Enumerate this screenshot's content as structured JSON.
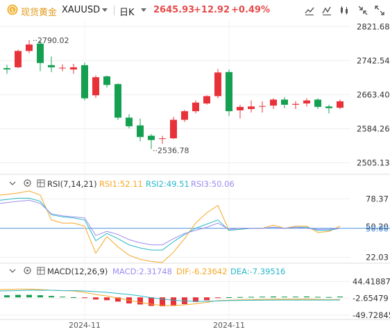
{
  "header": {
    "title": "现货黄金",
    "symbol": "XAUUSD",
    "period": "日K",
    "price": "2645.93",
    "change": "+12.92",
    "change_pct": "+0.49%",
    "icons": [
      "gold-coin-icon",
      "dropdown-caret-icon",
      "draw-line-icon",
      "indicator-icon",
      "candle-settings-icon",
      "collapse-icon",
      "expand-icon"
    ]
  },
  "colors": {
    "up": "#e8323a",
    "down": "#14a050",
    "rsi1": "#f5a623",
    "rsi2": "#25b7c8",
    "rsi3": "#9b8cf0",
    "macd_dif": "#f5a623",
    "macd_dea": "#25b7c8",
    "refline": "#4a90e2"
  },
  "chart_data": [
    {
      "type": "candlestick",
      "title": "XAUUSD",
      "ylim": [
        2480,
        2835
      ],
      "y_ticks": [
        "2821.68",
        "2742.54",
        "2663.40",
        "2584.26",
        "2505.13"
      ],
      "annotations": {
        "high": "2790.02",
        "low": "2536.78"
      },
      "candles": [
        {
          "o": 2725,
          "h": 2733,
          "l": 2712,
          "c": 2722
        },
        {
          "o": 2727,
          "h": 2768,
          "l": 2725,
          "c": 2765
        },
        {
          "o": 2765,
          "h": 2790,
          "l": 2760,
          "c": 2780
        },
        {
          "o": 2782,
          "h": 2790,
          "l": 2718,
          "c": 2737
        },
        {
          "o": 2732,
          "h": 2752,
          "l": 2716,
          "c": 2727
        },
        {
          "o": 2726,
          "h": 2734,
          "l": 2718,
          "c": 2726
        },
        {
          "o": 2722,
          "h": 2735,
          "l": 2712,
          "c": 2727
        },
        {
          "o": 2732,
          "h": 2738,
          "l": 2650,
          "c": 2655
        },
        {
          "o": 2662,
          "h": 2708,
          "l": 2656,
          "c": 2704
        },
        {
          "o": 2706,
          "h": 2708,
          "l": 2680,
          "c": 2686
        },
        {
          "o": 2688,
          "h": 2690,
          "l": 2605,
          "c": 2610
        },
        {
          "o": 2610,
          "h": 2618,
          "l": 2585,
          "c": 2590
        },
        {
          "o": 2592,
          "h": 2608,
          "l": 2555,
          "c": 2565
        },
        {
          "o": 2568,
          "h": 2572,
          "l": 2537,
          "c": 2558
        },
        {
          "o": 2561,
          "h": 2568,
          "l": 2549,
          "c": 2562
        },
        {
          "o": 2562,
          "h": 2612,
          "l": 2560,
          "c": 2605
        },
        {
          "o": 2605,
          "h": 2628,
          "l": 2600,
          "c": 2625
        },
        {
          "o": 2625,
          "h": 2650,
          "l": 2620,
          "c": 2645
        },
        {
          "o": 2643,
          "h": 2662,
          "l": 2640,
          "c": 2660
        },
        {
          "o": 2660,
          "h": 2723,
          "l": 2655,
          "c": 2715
        },
        {
          "o": 2716,
          "h": 2722,
          "l": 2614,
          "c": 2625
        },
        {
          "o": 2627,
          "h": 2640,
          "l": 2608,
          "c": 2635
        },
        {
          "o": 2630,
          "h": 2650,
          "l": 2622,
          "c": 2636
        },
        {
          "o": 2636,
          "h": 2648,
          "l": 2622,
          "c": 2637
        },
        {
          "o": 2638,
          "h": 2655,
          "l": 2630,
          "c": 2652
        },
        {
          "o": 2652,
          "h": 2658,
          "l": 2632,
          "c": 2640
        },
        {
          "o": 2640,
          "h": 2648,
          "l": 2630,
          "c": 2642
        },
        {
          "o": 2643,
          "h": 2655,
          "l": 2636,
          "c": 2650
        },
        {
          "o": 2652,
          "h": 2655,
          "l": 2630,
          "c": 2635
        },
        {
          "o": 2636,
          "h": 2640,
          "l": 2620,
          "c": 2632
        },
        {
          "o": 2633,
          "h": 2652,
          "l": 2630,
          "c": 2648
        }
      ]
    },
    {
      "type": "line",
      "title": "RSI(7,14,21)",
      "ylim": [
        17,
        88
      ],
      "y_ticks": [
        "78.37",
        "50.20",
        "50.00",
        "22.03"
      ],
      "ref_line": 50,
      "series": [
        {
          "name": "RSI1:52.11",
          "values": [
            82,
            84,
            86,
            82,
            58,
            55,
            55,
            52,
            26,
            42,
            32,
            24,
            20,
            18,
            17,
            27,
            40,
            55,
            65,
            72,
            48,
            49,
            50,
            50,
            53,
            50,
            52,
            52,
            46,
            47,
            52
          ]
        },
        {
          "name": "RSI2:49.51",
          "values": [
            77,
            79,
            79,
            76,
            63,
            61,
            60,
            58,
            38,
            45,
            40,
            34,
            31,
            29,
            29,
            37,
            44,
            50,
            54,
            58,
            48,
            49,
            50,
            50,
            51,
            50,
            51,
            51,
            48,
            48,
            50
          ]
        },
        {
          "name": "RSI3:50.06",
          "values": [
            74,
            76,
            77,
            74,
            64,
            62,
            61,
            60,
            43,
            47,
            44,
            39,
            36,
            34,
            34,
            40,
            45,
            48,
            51,
            55,
            49,
            50,
            50,
            50,
            51,
            50,
            51,
            50,
            49,
            49,
            50
          ]
        }
      ]
    },
    {
      "type": "bar",
      "title": "MACD(12,26,9)",
      "ylim": [
        -58,
        55
      ],
      "y_ticks": [
        "44.41887",
        "-2.65479",
        "-49.72845"
      ],
      "series": [
        {
          "name": "MACD:2.31748",
          "values": [
            6,
            7,
            7,
            6,
            4,
            2,
            0.5,
            -2,
            -6,
            -8,
            -12,
            -17,
            -20,
            -24,
            -25,
            -24,
            -19,
            -13,
            -8,
            -2,
            0.5,
            1,
            1.5,
            2,
            2.5,
            2,
            2,
            2.5,
            1.5,
            1,
            2.3
          ]
        },
        {
          "name": "DIF:-6.23642",
          "values": [
            22,
            23,
            23,
            22,
            20,
            19,
            18,
            14,
            8,
            4,
            -2,
            -8,
            -14,
            -19,
            -23,
            -23,
            -21,
            -18,
            -14,
            -9,
            -8,
            -7,
            -6.5,
            -6,
            -5.5,
            -5.5,
            -5.5,
            -5,
            -6,
            -6.5,
            -6.2
          ]
        },
        {
          "name": "DEA:-7.39516",
          "values": [
            18,
            19,
            20,
            20,
            20,
            19,
            19,
            18,
            16,
            14,
            11,
            8,
            4,
            -1,
            -5,
            -8,
            -10,
            -11,
            -11,
            -10,
            -9,
            -8.5,
            -8,
            -8,
            -7.5,
            -7.5,
            -7.5,
            -7.5,
            -7.5,
            -7.5,
            -7.4
          ]
        }
      ]
    }
  ],
  "x_axis": {
    "ticks": [
      "2024-11",
      "2024-11"
    ]
  }
}
